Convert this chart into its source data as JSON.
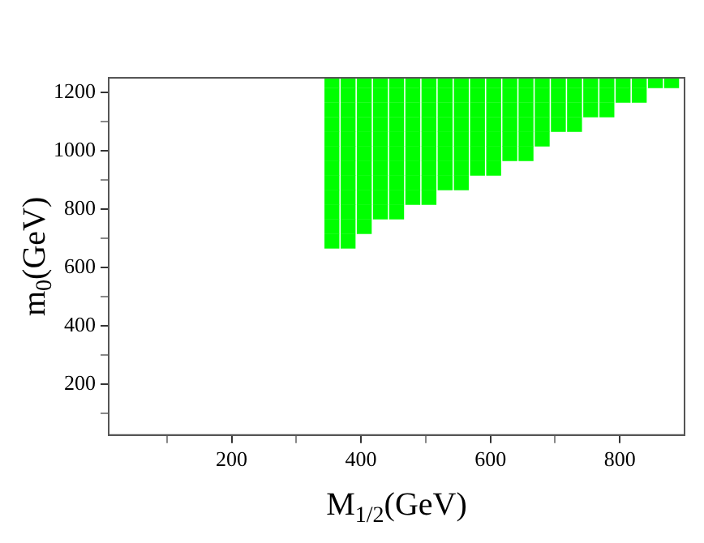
{
  "chart_data": {
    "type": "scatter",
    "xlabel": "M$_{1/2}$(GeV)",
    "ylabel": "m$_{0}$(GeV)",
    "xlim": [
      10,
      900
    ],
    "ylim": [
      25,
      1250
    ],
    "xticks": [
      {
        "value": 100,
        "label": null
      },
      200,
      {
        "value": 300,
        "label": null
      },
      400,
      {
        "value": 500,
        "label": null
      },
      600,
      {
        "value": 700,
        "label": null
      },
      800
    ],
    "yticks": [
      {
        "value": 100,
        "label": null
      },
      200,
      {
        "value": 300,
        "label": null
      },
      400,
      {
        "value": 500,
        "label": null
      },
      600,
      {
        "value": 700,
        "label": null
      },
      800,
      {
        "value": 900,
        "label": null
      },
      1000,
      {
        "value": 1100,
        "label": null
      },
      1200
    ],
    "grid": false,
    "marker": "square",
    "series": [
      {
        "color": "#00ff00",
        "x": [
          355,
          355,
          355,
          355,
          355,
          355,
          355,
          355,
          355,
          355,
          355,
          355,
          380,
          380,
          380,
          380,
          380,
          380,
          380,
          380,
          380,
          380,
          380,
          380,
          405,
          405,
          405,
          405,
          405,
          405,
          405,
          405,
          405,
          405,
          405,
          430,
          430,
          430,
          430,
          430,
          430,
          430,
          430,
          430,
          430,
          455,
          455,
          455,
          455,
          455,
          455,
          455,
          455,
          455,
          455,
          480,
          480,
          480,
          480,
          480,
          480,
          480,
          480,
          480,
          505,
          505,
          505,
          505,
          505,
          505,
          505,
          505,
          505,
          530,
          530,
          530,
          530,
          530,
          530,
          530,
          530,
          555,
          555,
          555,
          555,
          555,
          555,
          555,
          555,
          580,
          580,
          580,
          580,
          580,
          580,
          580,
          605,
          605,
          605,
          605,
          605,
          605,
          605,
          630,
          630,
          630,
          630,
          630,
          630,
          655,
          655,
          655,
          655,
          655,
          655,
          680,
          680,
          680,
          680,
          680,
          705,
          705,
          705,
          705,
          730,
          730,
          730,
          730,
          755,
          755,
          755,
          780,
          780,
          780,
          805,
          805,
          830,
          830,
          855,
          880
        ],
        "values": [
          1240,
          1190,
          1140,
          1090,
          1040,
          990,
          940,
          890,
          840,
          790,
          740,
          690,
          1240,
          1190,
          1140,
          1090,
          1040,
          990,
          940,
          890,
          840,
          790,
          740,
          690,
          1240,
          1190,
          1140,
          1090,
          1040,
          990,
          940,
          890,
          840,
          790,
          740,
          1240,
          1190,
          1140,
          1090,
          1040,
          990,
          940,
          890,
          840,
          790,
          1240,
          1190,
          1140,
          1090,
          1040,
          990,
          940,
          890,
          840,
          790,
          1240,
          1190,
          1140,
          1090,
          1040,
          990,
          940,
          890,
          840,
          1240,
          1190,
          1140,
          1090,
          1040,
          990,
          940,
          890,
          840,
          1240,
          1190,
          1140,
          1090,
          1040,
          990,
          940,
          890,
          1240,
          1190,
          1140,
          1090,
          1040,
          990,
          940,
          890,
          1240,
          1190,
          1140,
          1090,
          1040,
          990,
          940,
          1240,
          1190,
          1140,
          1090,
          1040,
          990,
          940,
          1240,
          1190,
          1140,
          1090,
          1040,
          990,
          1240,
          1190,
          1140,
          1090,
          1040,
          990,
          1240,
          1190,
          1140,
          1090,
          1040,
          1240,
          1190,
          1140,
          1090,
          1240,
          1190,
          1140,
          1090,
          1240,
          1190,
          1140,
          1240,
          1190,
          1140,
          1240,
          1190,
          1240,
          1190,
          1240,
          1240
        ]
      }
    ]
  }
}
